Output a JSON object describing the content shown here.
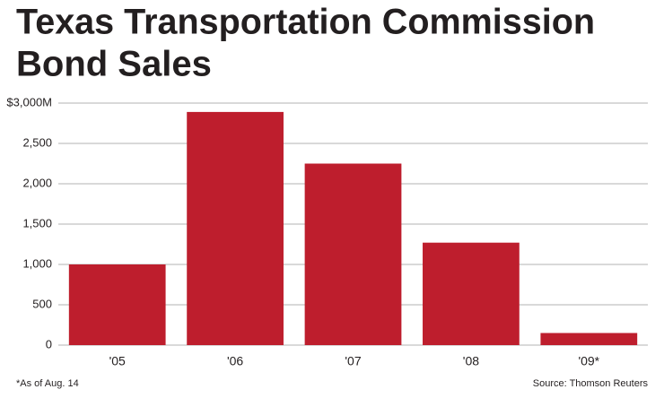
{
  "chart_data": {
    "type": "bar",
    "title": "Texas Transportation Commission",
    "subtitle": "Bond Sales",
    "categories": [
      "'05",
      "'06",
      "'07",
      "'08",
      "'09*"
    ],
    "values": [
      1000,
      2890,
      2250,
      1270,
      150
    ],
    "color": "#be1e2d",
    "ylim": [
      0,
      3000
    ],
    "yticks": [
      0,
      500,
      {
        "value": 1000,
        "label": "1,000"
      },
      {
        "value": 1500,
        "label": "1,500"
      },
      {
        "value": 2000,
        "label": "2,000"
      },
      {
        "value": 2500,
        "label": "2,500"
      },
      {
        "value": 3000,
        "label": "$3,000M"
      }
    ],
    "grid": true,
    "footnote": "*As of Aug. 14",
    "source": "Source: Thomson Reuters"
  }
}
